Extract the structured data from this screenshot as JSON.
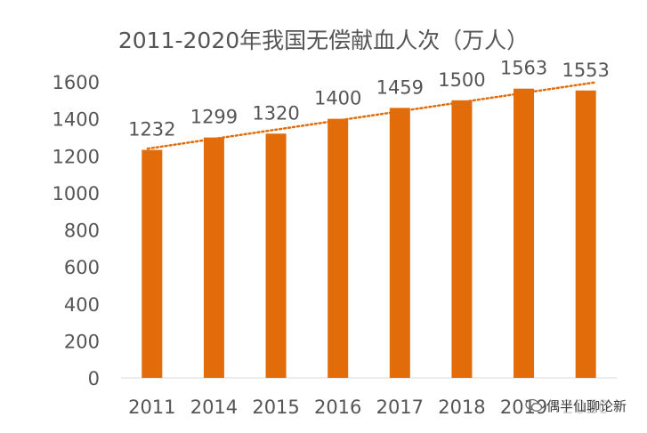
{
  "chart_data": {
    "type": "bar",
    "title": "2011-2020年我国无偿献血人次（万人）",
    "categories": [
      "2011",
      "2014",
      "2015",
      "2016",
      "2017",
      "2018",
      "2019",
      "2020"
    ],
    "values": [
      1232,
      1299,
      1320,
      1400,
      1459,
      1500,
      1563,
      1553
    ],
    "data_labels": [
      "1232",
      "1299",
      "1320",
      "1400",
      "1459",
      "1500",
      "1563",
      "1553"
    ],
    "ylim": [
      0,
      1600
    ],
    "yticks": [
      "0",
      "200",
      "400",
      "600",
      "800",
      "1000",
      "1200",
      "1400",
      "1600"
    ],
    "grid": false,
    "legend": "none",
    "trendline": "linear-dotted",
    "colors": {
      "bar": "#E36C0A",
      "trendline": "#E36C0A",
      "text": "#555555"
    }
  },
  "watermark": {
    "text": "偶半仙聊论新",
    "icon": "wechat-icon"
  }
}
